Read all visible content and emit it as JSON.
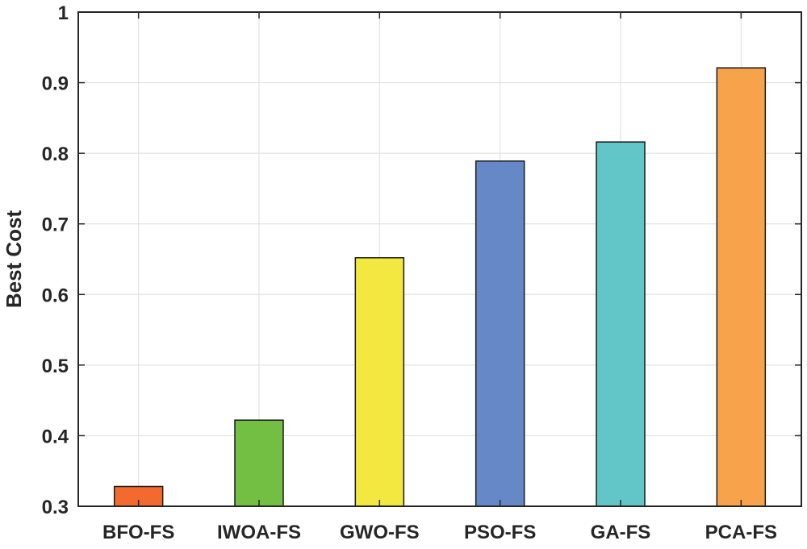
{
  "chart_data": {
    "type": "bar",
    "categories": [
      "BFO-FS",
      "IWOA-FS",
      "GWO-FS",
      "PSO-FS",
      "GA-FS",
      "PCA-FS"
    ],
    "values": [
      0.328,
      0.422,
      0.652,
      0.789,
      0.816,
      0.921
    ],
    "colors": [
      "#f26a2e",
      "#72bf44",
      "#f2e840",
      "#6688c7",
      "#62c6c8",
      "#f6a34b"
    ],
    "title": "",
    "xlabel": "",
    "ylabel": "Best Cost",
    "ylim": [
      0.3,
      1.0
    ],
    "yticks": [
      0.3,
      0.4,
      0.5,
      0.6,
      0.7,
      0.8,
      0.9,
      1
    ],
    "ytick_labels": [
      "0.3",
      "0.4",
      "0.5",
      "0.6",
      "0.7",
      "0.8",
      "0.9",
      "1"
    ],
    "grid": true,
    "legend": "none"
  }
}
